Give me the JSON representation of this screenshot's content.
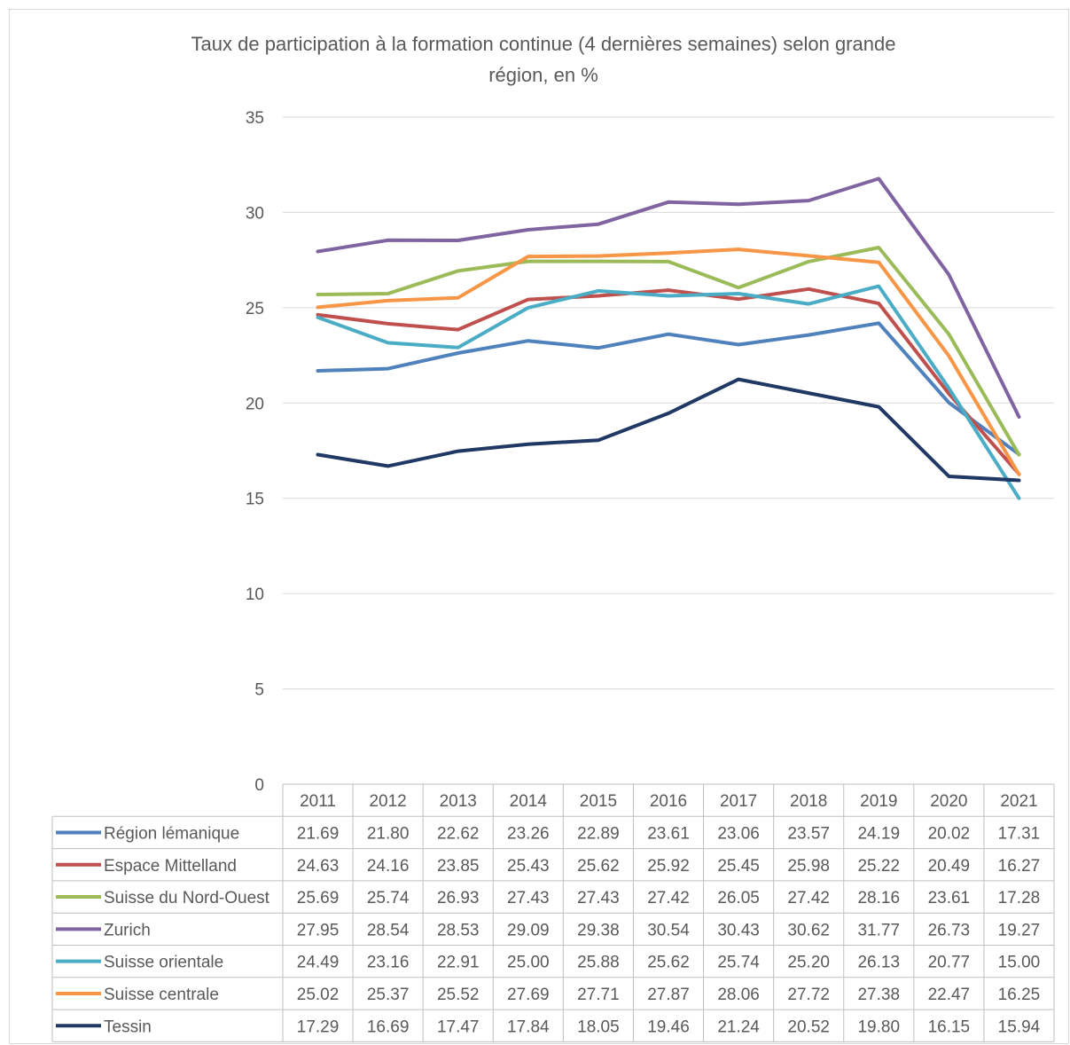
{
  "chart_data": {
    "type": "line",
    "title": "Taux de participation à la formation continue (4 dernières semaines) selon grande région, en %",
    "title_lines": [
      "Taux de participation à la formation continue (4 dernières semaines) selon grande",
      "région, en %"
    ],
    "ylim": [
      0,
      35
    ],
    "yticks": [
      "0",
      "5",
      "10",
      "15",
      "20",
      "25",
      "30",
      "35"
    ],
    "grid": true,
    "legend": "data-table",
    "categories": [
      "2011",
      "2012",
      "2013",
      "2014",
      "2015",
      "2016",
      "2017",
      "2018",
      "2019",
      "2020",
      "2021"
    ],
    "series": [
      {
        "name": "Région lémanique",
        "color": "#4f81bd",
        "values": [
          21.69,
          21.8,
          22.62,
          23.26,
          22.89,
          23.61,
          23.06,
          23.57,
          24.19,
          20.02,
          17.31
        ],
        "labels": [
          "21.69",
          "21.80",
          "22.62",
          "23.26",
          "22.89",
          "23.61",
          "23.06",
          "23.57",
          "24.19",
          "20.02",
          "17.31"
        ]
      },
      {
        "name": "Espace Mittelland",
        "color": "#c0504d",
        "values": [
          24.63,
          24.16,
          23.85,
          25.43,
          25.62,
          25.92,
          25.45,
          25.98,
          25.22,
          20.49,
          16.27
        ],
        "labels": [
          "24.63",
          "24.16",
          "23.85",
          "25.43",
          "25.62",
          "25.92",
          "25.45",
          "25.98",
          "25.22",
          "20.49",
          "16.27"
        ]
      },
      {
        "name": "Suisse du Nord-Ouest",
        "color": "#9bbb59",
        "values": [
          25.69,
          25.74,
          26.93,
          27.43,
          27.43,
          27.42,
          26.05,
          27.42,
          28.16,
          23.61,
          17.28
        ],
        "labels": [
          "25.69",
          "25.74",
          "26.93",
          "27.43",
          "27.43",
          "27.42",
          "26.05",
          "27.42",
          "28.16",
          "23.61",
          "17.28"
        ]
      },
      {
        "name": "Zurich",
        "color": "#8064a2",
        "values": [
          27.95,
          28.54,
          28.53,
          29.09,
          29.38,
          30.54,
          30.43,
          30.62,
          31.77,
          26.73,
          19.27
        ],
        "labels": [
          "27.95",
          "28.54",
          "28.53",
          "29.09",
          "29.38",
          "30.54",
          "30.43",
          "30.62",
          "31.77",
          "26.73",
          "19.27"
        ]
      },
      {
        "name": "Suisse orientale",
        "color": "#4bacc6",
        "values": [
          24.49,
          23.16,
          22.91,
          25.0,
          25.88,
          25.62,
          25.74,
          25.2,
          26.13,
          20.77,
          15.0
        ],
        "labels": [
          "24.49",
          "23.16",
          "22.91",
          "25.00",
          "25.88",
          "25.62",
          "25.74",
          "25.20",
          "26.13",
          "20.77",
          "15.00"
        ]
      },
      {
        "name": "Suisse centrale",
        "color": "#f79646",
        "values": [
          25.02,
          25.37,
          25.52,
          27.69,
          27.71,
          27.87,
          28.06,
          27.72,
          27.38,
          22.47,
          16.25
        ],
        "labels": [
          "25.02",
          "25.37",
          "25.52",
          "27.69",
          "27.71",
          "27.87",
          "28.06",
          "27.72",
          "27.38",
          "22.47",
          "16.25"
        ]
      },
      {
        "name": "Tessin",
        "color": "#1f3864",
        "values": [
          17.29,
          16.69,
          17.47,
          17.84,
          18.05,
          19.46,
          21.24,
          20.52,
          19.8,
          16.15,
          15.94
        ],
        "labels": [
          "17.29",
          "16.69",
          "17.47",
          "17.84",
          "18.05",
          "19.46",
          "21.24",
          "20.52",
          "19.80",
          "16.15",
          "15.94"
        ]
      }
    ]
  }
}
